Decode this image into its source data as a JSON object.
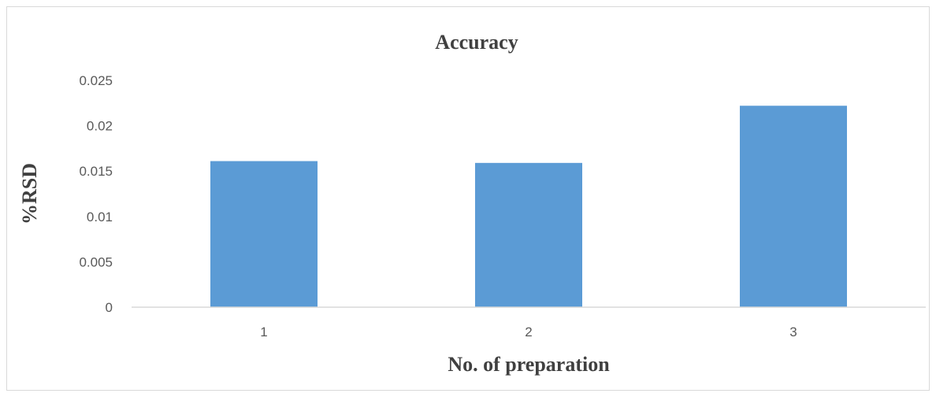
{
  "chart_data": {
    "type": "bar",
    "title": "Accuracy",
    "xlabel": "No. of preparation",
    "ylabel": "%RSD",
    "categories": [
      "1",
      "2",
      "3"
    ],
    "values": [
      0.0161,
      0.0159,
      0.0222
    ],
    "ylim": [
      0,
      0.025
    ],
    "yticks": [
      0,
      0.005,
      0.01,
      0.015,
      0.02,
      0.025
    ],
    "ytick_labels": [
      "0",
      "0.005",
      "0.01",
      "0.015",
      "0.02",
      "0.025"
    ],
    "grid": false,
    "legend": "none",
    "bar_color": "#5b9bd5",
    "axis_color": "#d9d9d9"
  }
}
